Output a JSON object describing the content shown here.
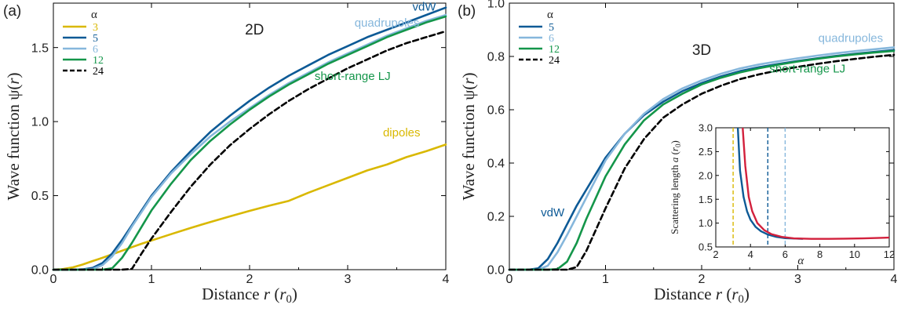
{
  "chart_data": [
    {
      "type": "line",
      "panel_label": "(a)",
      "title": "2D",
      "xlabel": "Distance r (r0)",
      "xlabel_parts": {
        "main": "Distance ",
        "var": "r",
        "open": " (",
        "unit": "r",
        "sub": "0",
        "close": ")"
      },
      "ylabel": "Wave function ψ(r)",
      "ylabel_parts": {
        "main": "Wave function ψ(",
        "var": "r",
        "close": ")"
      },
      "xlim": [
        0,
        4
      ],
      "ylim": [
        0,
        1.8
      ],
      "x_ticks": [
        0,
        1,
        2,
        3,
        4
      ],
      "x_tick_labels": [
        "0",
        "1",
        "2",
        "3",
        "4"
      ],
      "y_ticks": [
        0,
        0.5,
        1.0,
        1.5
      ],
      "y_tick_labels": [
        "0.0",
        "0.5",
        "1.0",
        "1.5"
      ],
      "grid": false,
      "legend": {
        "title": "α",
        "placement": "top-left",
        "entries": [
          {
            "label": "3",
            "color": "#d9b800",
            "dash": false
          },
          {
            "label": "5",
            "color": "#0d5a96",
            "dash": false
          },
          {
            "label": "6",
            "color": "#86b7dc",
            "dash": false
          },
          {
            "label": "12",
            "color": "#14964a",
            "dash": false
          },
          {
            "label": "24",
            "color": "#000000",
            "dash": true
          }
        ]
      },
      "annotations": [
        {
          "text": "vdW",
          "color": "#0d5a96",
          "x": 3.78,
          "y": 1.75
        },
        {
          "text": "quadrupoles",
          "color": "#86b7dc",
          "x": 3.4,
          "y": 1.64
        },
        {
          "text": "short-range LJ",
          "color": "#14964a",
          "x": 3.05,
          "y": 1.28
        },
        {
          "text": "dipoles",
          "color": "#d9b800",
          "x": 3.55,
          "y": 0.9
        }
      ],
      "series": [
        {
          "name": "3",
          "color": "#d9b800",
          "dash": false,
          "x": [
            0,
            0.1,
            0.2,
            0.3,
            0.4,
            0.5,
            0.6,
            0.7,
            0.8,
            0.9,
            1.0,
            1.2,
            1.4,
            1.6,
            1.8,
            2.0,
            2.2,
            2.4,
            2.6,
            2.8,
            3.0,
            3.2,
            3.4,
            3.6,
            3.8,
            4.0
          ],
          "y": [
            0,
            0.004,
            0.016,
            0.035,
            0.058,
            0.08,
            0.104,
            0.128,
            0.152,
            0.175,
            0.197,
            0.24,
            0.282,
            0.322,
            0.36,
            0.397,
            0.432,
            0.465,
            0.52,
            0.57,
            0.62,
            0.67,
            0.71,
            0.76,
            0.8,
            0.845
          ]
        },
        {
          "name": "5",
          "color": "#0d5a96",
          "dash": false,
          "x": [
            0,
            0.1,
            0.2,
            0.3,
            0.4,
            0.5,
            0.6,
            0.7,
            0.8,
            0.9,
            1.0,
            1.2,
            1.4,
            1.6,
            1.8,
            2.0,
            2.2,
            2.4,
            2.6,
            2.8,
            3.0,
            3.2,
            3.4,
            3.6,
            3.8,
            4.0
          ],
          "y": [
            0,
            0,
            0,
            0.002,
            0.012,
            0.045,
            0.11,
            0.2,
            0.3,
            0.4,
            0.5,
            0.66,
            0.8,
            0.93,
            1.04,
            1.14,
            1.23,
            1.31,
            1.38,
            1.45,
            1.51,
            1.57,
            1.62,
            1.67,
            1.72,
            1.77
          ]
        },
        {
          "name": "6",
          "color": "#86b7dc",
          "dash": false,
          "x": [
            0,
            0.1,
            0.2,
            0.3,
            0.4,
            0.5,
            0.6,
            0.7,
            0.8,
            0.9,
            1.0,
            1.2,
            1.4,
            1.6,
            1.8,
            2.0,
            2.2,
            2.4,
            2.6,
            2.8,
            3.0,
            3.2,
            3.4,
            3.6,
            3.8,
            4.0
          ],
          "y": [
            0,
            0,
            0,
            0,
            0.005,
            0.03,
            0.09,
            0.18,
            0.29,
            0.39,
            0.49,
            0.65,
            0.78,
            0.9,
            1.0,
            1.09,
            1.18,
            1.26,
            1.33,
            1.4,
            1.46,
            1.52,
            1.58,
            1.63,
            1.68,
            1.72
          ]
        },
        {
          "name": "12",
          "color": "#14964a",
          "dash": false,
          "x": [
            0,
            0.1,
            0.2,
            0.3,
            0.4,
            0.5,
            0.6,
            0.7,
            0.8,
            0.9,
            1.0,
            1.2,
            1.4,
            1.6,
            1.8,
            2.0,
            2.2,
            2.4,
            2.6,
            2.8,
            3.0,
            3.2,
            3.4,
            3.6,
            3.8,
            4.0
          ],
          "y": [
            0,
            0,
            0,
            0,
            0,
            0,
            0.01,
            0.08,
            0.18,
            0.29,
            0.4,
            0.58,
            0.74,
            0.87,
            0.98,
            1.08,
            1.17,
            1.25,
            1.32,
            1.39,
            1.45,
            1.51,
            1.57,
            1.62,
            1.67,
            1.71
          ]
        },
        {
          "name": "24",
          "color": "#000000",
          "dash": true,
          "x": [
            0,
            0.2,
            0.4,
            0.6,
            0.7,
            0.8,
            0.9,
            1.0,
            1.2,
            1.4,
            1.6,
            1.8,
            2.0,
            2.2,
            2.4,
            2.6,
            2.8,
            3.0,
            3.2,
            3.4,
            3.6,
            3.8,
            4.0
          ],
          "y": [
            0,
            0,
            0,
            0,
            0,
            0.005,
            0.11,
            0.21,
            0.39,
            0.56,
            0.71,
            0.84,
            0.95,
            1.05,
            1.14,
            1.22,
            1.29,
            1.36,
            1.42,
            1.48,
            1.53,
            1.57,
            1.61
          ]
        }
      ]
    },
    {
      "type": "line",
      "panel_label": "(b)",
      "title": "3D",
      "xlabel": "Distance r (r0)",
      "xlabel_parts": {
        "main": "Distance ",
        "var": "r",
        "open": " (",
        "unit": "r",
        "sub": "0",
        "close": ")"
      },
      "ylabel": "Wave function ψ(r)",
      "ylabel_parts": {
        "main": "Wave function ψ(",
        "var": "r",
        "close": ")"
      },
      "xlim": [
        0,
        4
      ],
      "ylim": [
        0,
        1.0
      ],
      "x_ticks": [
        0,
        1,
        2,
        3,
        4
      ],
      "x_tick_labels": [
        "0",
        "1",
        "2",
        "3",
        "4"
      ],
      "y_ticks": [
        0,
        0.2,
        0.4,
        0.6,
        0.8,
        1.0
      ],
      "y_tick_labels": [
        "0.0",
        "0.2",
        "0.4",
        "0.6",
        "0.8",
        "1.0"
      ],
      "grid": false,
      "legend": {
        "title": "α",
        "placement": "top-left",
        "entries": [
          {
            "label": "5",
            "color": "#0d5a96",
            "dash": false
          },
          {
            "label": "6",
            "color": "#86b7dc",
            "dash": false
          },
          {
            "label": "12",
            "color": "#14964a",
            "dash": false
          },
          {
            "label": "24",
            "color": "#000000",
            "dash": true
          }
        ]
      },
      "annotations": [
        {
          "text": "quadrupoles",
          "color": "#86b7dc",
          "x": 3.55,
          "y": 0.855
        },
        {
          "text": "short-range LJ",
          "color": "#14964a",
          "x": 3.1,
          "y": 0.74
        },
        {
          "text": "vdW",
          "color": "#0d5a96",
          "x": 0.45,
          "y": 0.2
        }
      ],
      "series": [
        {
          "name": "5",
          "color": "#0d5a96",
          "dash": false,
          "x": [
            0,
            0.2,
            0.3,
            0.4,
            0.5,
            0.6,
            0.7,
            0.8,
            0.9,
            1.0,
            1.2,
            1.4,
            1.6,
            1.8,
            2.0,
            2.2,
            2.4,
            2.6,
            2.8,
            3.0,
            3.2,
            3.4,
            3.6,
            3.8,
            4.0
          ],
          "y": [
            0,
            0,
            0.005,
            0.04,
            0.1,
            0.17,
            0.24,
            0.3,
            0.36,
            0.42,
            0.51,
            0.58,
            0.63,
            0.67,
            0.7,
            0.725,
            0.745,
            0.76,
            0.772,
            0.783,
            0.793,
            0.802,
            0.81,
            0.817,
            0.824
          ]
        },
        {
          "name": "6",
          "color": "#86b7dc",
          "dash": false,
          "x": [
            0,
            0.2,
            0.3,
            0.4,
            0.5,
            0.6,
            0.7,
            0.8,
            0.9,
            1.0,
            1.2,
            1.4,
            1.6,
            1.8,
            2.0,
            2.2,
            2.4,
            2.6,
            2.8,
            3.0,
            3.2,
            3.4,
            3.6,
            3.8,
            4.0
          ],
          "y": [
            0,
            0,
            0,
            0.015,
            0.065,
            0.13,
            0.2,
            0.27,
            0.34,
            0.41,
            0.51,
            0.585,
            0.64,
            0.68,
            0.71,
            0.735,
            0.755,
            0.77,
            0.782,
            0.793,
            0.803,
            0.812,
            0.82,
            0.827,
            0.834
          ]
        },
        {
          "name": "12",
          "color": "#14964a",
          "dash": false,
          "x": [
            0,
            0.4,
            0.5,
            0.6,
            0.7,
            0.8,
            0.9,
            1.0,
            1.2,
            1.4,
            1.6,
            1.8,
            2.0,
            2.2,
            2.4,
            2.6,
            2.8,
            3.0,
            3.2,
            3.4,
            3.6,
            3.8,
            4.0
          ],
          "y": [
            0,
            0,
            0.002,
            0.03,
            0.1,
            0.19,
            0.27,
            0.35,
            0.47,
            0.56,
            0.62,
            0.66,
            0.695,
            0.72,
            0.74,
            0.756,
            0.769,
            0.781,
            0.791,
            0.8,
            0.808,
            0.815,
            0.821
          ]
        },
        {
          "name": "24",
          "color": "#000000",
          "dash": true,
          "x": [
            0,
            0.6,
            0.7,
            0.8,
            0.9,
            1.0,
            1.2,
            1.4,
            1.6,
            1.8,
            2.0,
            2.2,
            2.4,
            2.6,
            2.8,
            3.0,
            3.2,
            3.4,
            3.6,
            3.8,
            4.0
          ],
          "y": [
            0,
            0,
            0.01,
            0.07,
            0.15,
            0.23,
            0.38,
            0.49,
            0.57,
            0.62,
            0.66,
            0.69,
            0.715,
            0.733,
            0.748,
            0.761,
            0.772,
            0.782,
            0.791,
            0.799,
            0.806
          ]
        }
      ]
    },
    {
      "type": "line",
      "panel_label": "",
      "title": "",
      "inset": true,
      "xlabel": "α",
      "ylabel": "Scattering length a (r0)",
      "ylabel_parts": {
        "main": "Scattering length ",
        "var": "a",
        "open": " (",
        "unit": "r",
        "sub": "0",
        "close": ")"
      },
      "xlim": [
        2,
        12
      ],
      "ylim": [
        0.5,
        3.0
      ],
      "x_ticks": [
        2,
        4,
        6,
        8,
        10,
        12
      ],
      "x_tick_labels": [
        "2",
        "4",
        "6",
        "8",
        "10",
        "12"
      ],
      "y_ticks": [
        0.5,
        1.0,
        1.5,
        2.0,
        2.5,
        3.0
      ],
      "y_tick_labels": [
        "0.5",
        "1.0",
        "1.5",
        "2.0",
        "2.5",
        "3.0"
      ],
      "grid": false,
      "vlines": [
        {
          "x": 3,
          "color": "#d9b800"
        },
        {
          "x": 5,
          "color": "#0d5a96"
        },
        {
          "x": 6,
          "color": "#86b7dc"
        }
      ],
      "series": [
        {
          "name": "",
          "color": "#0d5a96",
          "dash": false,
          "x": [
            3.27,
            3.4,
            3.6,
            3.8,
            4.0,
            4.3,
            4.6,
            5.0,
            5.5,
            6.0,
            7.0
          ],
          "y": [
            3.0,
            2.1,
            1.55,
            1.25,
            1.07,
            0.92,
            0.83,
            0.76,
            0.71,
            0.685,
            0.67
          ]
        },
        {
          "name": "",
          "color": "#d2203c",
          "dash": false,
          "x": [
            3.55,
            3.7,
            3.9,
            4.1,
            4.4,
            4.8,
            5.2,
            5.8,
            6.5,
            7.5,
            8.5,
            9.5,
            10.5,
            11.5,
            12.0
          ],
          "y": [
            3.0,
            2.2,
            1.55,
            1.25,
            1.0,
            0.85,
            0.77,
            0.71,
            0.68,
            0.67,
            0.67,
            0.675,
            0.68,
            0.69,
            0.695
          ]
        }
      ]
    }
  ]
}
